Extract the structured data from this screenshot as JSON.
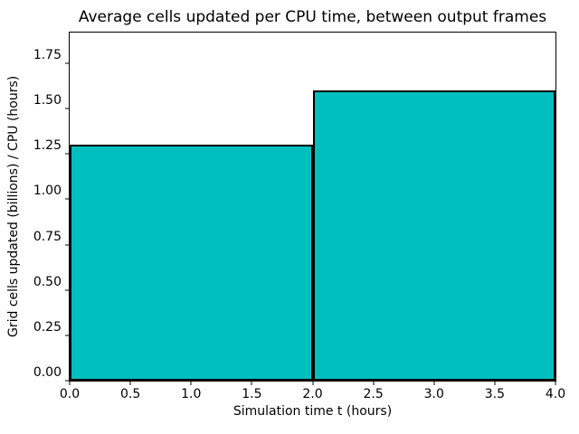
{
  "chart_data": {
    "type": "bar",
    "title": "Average cells updated per CPU time, between output frames",
    "xlabel": "Simulation time t (hours)",
    "ylabel": "Grid cells updated (billions) / CPU (hours)",
    "bars": [
      {
        "x_start": 0.0,
        "x_end": 2.0,
        "value": 1.3
      },
      {
        "x_start": 2.0,
        "x_end": 4.0,
        "value": 1.6
      }
    ],
    "xlim": [
      0.0,
      4.0
    ],
    "ylim": [
      0.0,
      1.92
    ],
    "x_ticks": [
      {
        "value": 0.0,
        "label": "0.0"
      },
      {
        "value": 0.5,
        "label": "0.5"
      },
      {
        "value": 1.0,
        "label": "1.0"
      },
      {
        "value": 1.5,
        "label": "1.5"
      },
      {
        "value": 2.0,
        "label": "2.0"
      },
      {
        "value": 2.5,
        "label": "2.5"
      },
      {
        "value": 3.0,
        "label": "3.0"
      },
      {
        "value": 3.5,
        "label": "3.5"
      },
      {
        "value": 4.0,
        "label": "4.0"
      }
    ],
    "y_ticks": [
      {
        "value": 0.0,
        "label": "0.00"
      },
      {
        "value": 0.25,
        "label": "0.25"
      },
      {
        "value": 0.5,
        "label": "0.50"
      },
      {
        "value": 0.75,
        "label": "0.75"
      },
      {
        "value": 1.0,
        "label": "1.00"
      },
      {
        "value": 1.25,
        "label": "1.25"
      },
      {
        "value": 1.5,
        "label": "1.50"
      },
      {
        "value": 1.75,
        "label": "1.75"
      }
    ],
    "bar_color": "#00bfbf",
    "bar_edge_color": "#000000",
    "grid": false,
    "legend": null
  }
}
